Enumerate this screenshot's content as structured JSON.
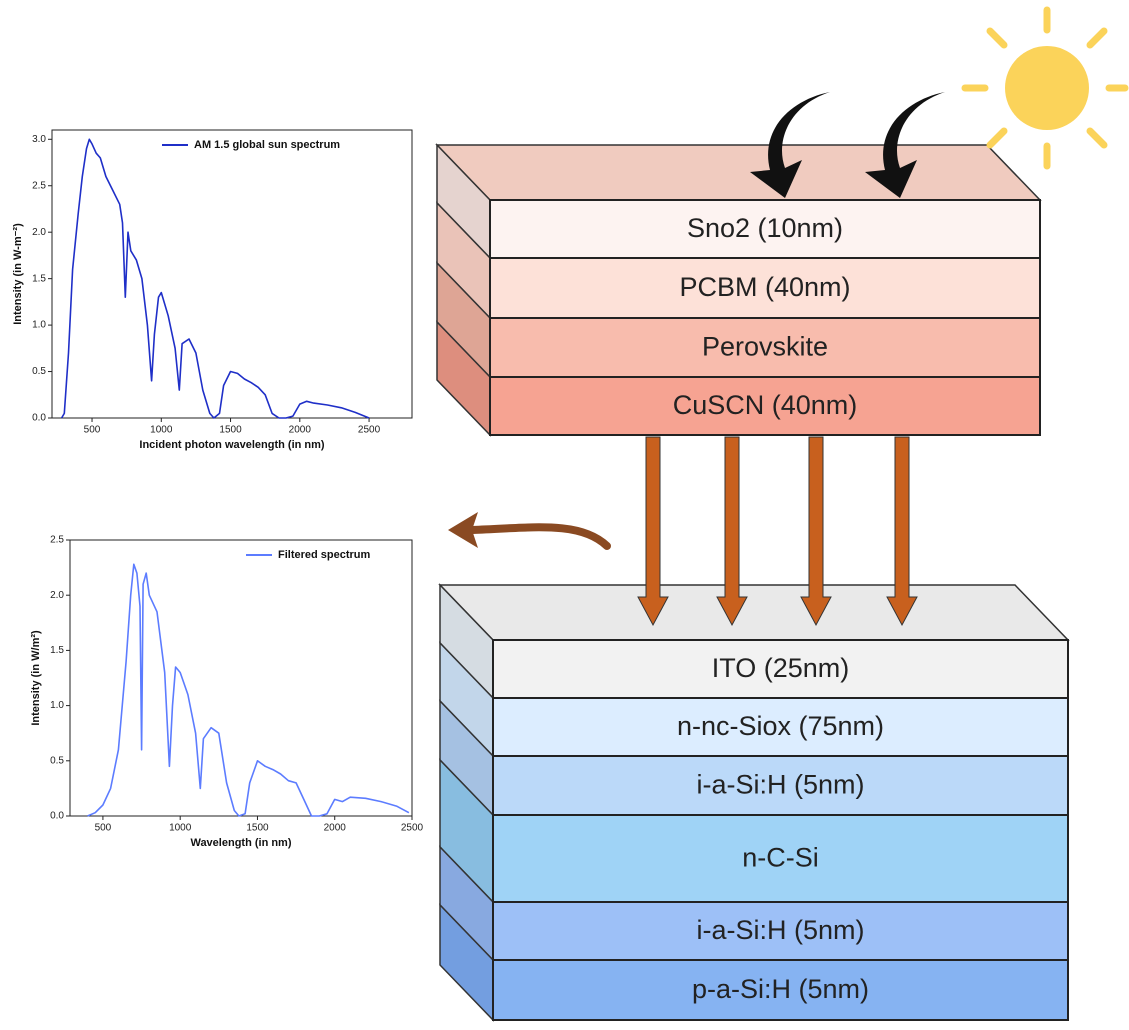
{
  "chart_data": [
    {
      "type": "line",
      "x_label": "Incident photon wavelength (in nm)",
      "y_label": "Intensity (in W-m⁻²)",
      "x": [
        280,
        300,
        330,
        360,
        400,
        430,
        460,
        480,
        500,
        530,
        560,
        600,
        650,
        700,
        720,
        740,
        760,
        780,
        820,
        860,
        900,
        930,
        950,
        980,
        1000,
        1050,
        1100,
        1130,
        1150,
        1200,
        1250,
        1300,
        1350,
        1380,
        1420,
        1450,
        1500,
        1550,
        1600,
        1650,
        1700,
        1750,
        1800,
        1850,
        1900,
        1950,
        2000,
        2050,
        2100,
        2200,
        2300,
        2400,
        2500
      ],
      "series": [
        {
          "name": "AM 1.5 global sun spectrum",
          "color": "#1f2fc8",
          "values": [
            0,
            0.05,
            0.7,
            1.6,
            2.2,
            2.6,
            2.9,
            3.0,
            2.95,
            2.85,
            2.8,
            2.6,
            2.45,
            2.3,
            2.1,
            1.3,
            2.0,
            1.8,
            1.7,
            1.5,
            1.0,
            0.4,
            0.9,
            1.3,
            1.35,
            1.1,
            0.75,
            0.3,
            0.8,
            0.85,
            0.7,
            0.3,
            0.05,
            0,
            0.05,
            0.35,
            0.5,
            0.48,
            0.42,
            0.38,
            0.33,
            0.25,
            0.05,
            0,
            0,
            0.02,
            0.15,
            0.18,
            0.16,
            0.14,
            0.11,
            0.06,
            0
          ]
        }
      ],
      "xlim": [
        211,
        2810
      ],
      "xticks": [
        500,
        1000,
        1500,
        2000,
        2500
      ],
      "ylim": [
        0,
        3.1
      ],
      "yticks": [
        {
          "value": 0,
          "label": "0.0"
        },
        {
          "value": 0.5,
          "label": "0.5"
        },
        {
          "value": 1,
          "label": "1.0"
        },
        {
          "value": 1.5,
          "label": "1.5"
        },
        {
          "value": 2,
          "label": "2.0"
        },
        {
          "value": 2.5,
          "label": "2.5"
        },
        {
          "value": 3,
          "label": "3.0"
        }
      ],
      "legend": "top-right"
    },
    {
      "type": "line",
      "x_label": "Wavelength (in nm)",
      "y_label": "Intensity (in W/m²)",
      "x": [
        400,
        450,
        500,
        550,
        600,
        650,
        680,
        700,
        720,
        740,
        750,
        760,
        780,
        800,
        850,
        900,
        930,
        950,
        970,
        1000,
        1050,
        1100,
        1130,
        1150,
        1200,
        1250,
        1300,
        1350,
        1380,
        1420,
        1450,
        1500,
        1550,
        1600,
        1650,
        1700,
        1750,
        1800,
        1850,
        1900,
        1950,
        2000,
        2050,
        2100,
        2200,
        2300,
        2400,
        2480
      ],
      "series": [
        {
          "name": "Filtered spectrum",
          "color": "#5c7cff",
          "values": [
            0,
            0.03,
            0.1,
            0.25,
            0.6,
            1.4,
            2.0,
            2.28,
            2.2,
            1.9,
            0.6,
            2.1,
            2.2,
            2.0,
            1.85,
            1.3,
            0.45,
            1.0,
            1.35,
            1.3,
            1.1,
            0.75,
            0.25,
            0.7,
            0.8,
            0.75,
            0.3,
            0.05,
            0,
            0.02,
            0.3,
            0.5,
            0.45,
            0.42,
            0.38,
            0.32,
            0.3,
            0.15,
            0,
            0,
            0.02,
            0.15,
            0.13,
            0.17,
            0.16,
            0.13,
            0.09,
            0.03
          ]
        }
      ],
      "xlim": [
        287,
        2500
      ],
      "xticks": [
        500,
        1000,
        1500,
        2000,
        2500
      ],
      "ylim": [
        0,
        2.5
      ],
      "yticks": [
        {
          "value": 0,
          "label": "0.0"
        },
        {
          "value": 0.5,
          "label": "0.5"
        },
        {
          "value": 1,
          "label": "1.0"
        },
        {
          "value": 1.5,
          "label": "1.5"
        },
        {
          "value": 2,
          "label": "2.0"
        },
        {
          "value": 2.5,
          "label": "2.5"
        }
      ],
      "legend": "top-right"
    }
  ],
  "top_stack": {
    "layers": [
      "Sno2 (10nm)",
      "PCBM (40nm)",
      "Perovskite",
      "CuSCN (40nm)"
    ]
  },
  "bottom_stack": {
    "layers": [
      "ITO (25nm)",
      "n-nc-Siox (75nm)",
      "i-a-Si:H (5nm)",
      "n-C-Si",
      "i-a-Si:H (5nm)",
      "p-a-Si:H (5nm)"
    ]
  }
}
